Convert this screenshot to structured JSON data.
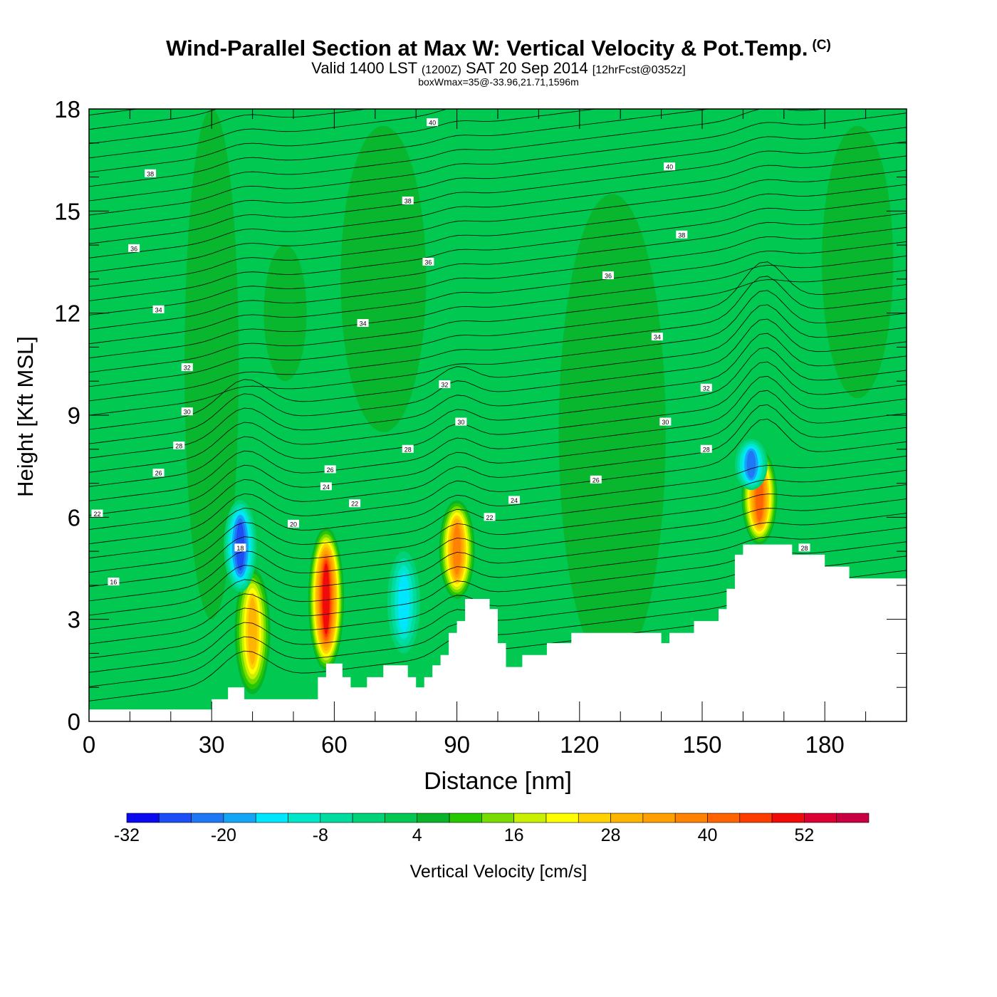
{
  "title": {
    "main": "Wind-Parallel Section at Max W: Vertical Velocity & Pot.Temp.",
    "copyright": "(C)",
    "valid_prefix": "Valid 1400 LST",
    "valid_utc": "(1200Z)",
    "valid_date": "SAT 20 Sep 2014",
    "forecast": "[12hrFcst@0352z]",
    "boxwmax": "boxWmax=35@-33.96,21.71,1596m"
  },
  "chart_data": {
    "type": "heatmap",
    "xlabel": "Distance [nm]",
    "ylabel": "Height [Kft MSL]",
    "xlim": [
      0,
      200
    ],
    "ylim": [
      0,
      18
    ],
    "x_ticks": [
      0,
      30,
      60,
      90,
      120,
      150,
      180
    ],
    "y_ticks": [
      0,
      3,
      6,
      9,
      12,
      15,
      18
    ],
    "field": "Vertical Velocity [cm/s]",
    "background_value_range": [
      -2,
      4
    ],
    "colorbar": {
      "label": "Vertical Velocity [cm/s]",
      "tick_labels": [
        "-32",
        "-20",
        "-8",
        "4",
        "16",
        "28",
        "40",
        "52"
      ],
      "levels": [
        -32,
        -28,
        -24,
        -20,
        -16,
        -12,
        -8,
        -4,
        0,
        4,
        8,
        12,
        16,
        20,
        24,
        28,
        32,
        36,
        40,
        44,
        48,
        52,
        56
      ],
      "colors": [
        "#0a0af0",
        "#1d4df5",
        "#1e78f5",
        "#14a5f5",
        "#00e6ff",
        "#00e6c8",
        "#00dca0",
        "#00d278",
        "#00c850",
        "#0ab428",
        "#28c800",
        "#78dc00",
        "#c8f000",
        "#ffff00",
        "#ffd200",
        "#ffb400",
        "#ffa000",
        "#ff8200",
        "#ff6400",
        "#ff3c00",
        "#f00a0a",
        "#dc0032",
        "#c80041"
      ]
    },
    "features": [
      {
        "type": "updraft",
        "x": 40,
        "y": [
          0.8,
          4.5
        ],
        "peak": 28
      },
      {
        "type": "updraft",
        "x": 58,
        "y": [
          1.5,
          5.7
        ],
        "peak": 48
      },
      {
        "type": "updraft",
        "x": 90,
        "y": [
          3.6,
          6.5
        ],
        "peak": 36
      },
      {
        "type": "updraft",
        "x": 164,
        "y": [
          5.2,
          8.0
        ],
        "peak": 40
      },
      {
        "type": "downdraft",
        "x": 37,
        "y": [
          3.8,
          6.5
        ],
        "peak": -28
      },
      {
        "type": "downdraft",
        "x": 77,
        "y": [
          2.0,
          5.0
        ],
        "peak": -16
      },
      {
        "type": "downdraft",
        "x": 162,
        "y": [
          6.8,
          8.3
        ],
        "peak": -24
      }
    ],
    "isentropes": [
      {
        "label": "40",
        "x": 84,
        "y": 17.6
      },
      {
        "label": "40",
        "x": 142,
        "y": 16.3
      },
      {
        "label": "38",
        "x": 15,
        "y": 16.1
      },
      {
        "label": "38",
        "x": 78,
        "y": 15.3
      },
      {
        "label": "38",
        "x": 145,
        "y": 14.3
      },
      {
        "label": "36",
        "x": 11,
        "y": 13.9
      },
      {
        "label": "36",
        "x": 83,
        "y": 13.5
      },
      {
        "label": "36",
        "x": 127,
        "y": 13.1
      },
      {
        "label": "34",
        "x": 17,
        "y": 12.1
      },
      {
        "label": "34",
        "x": 67,
        "y": 11.7
      },
      {
        "label": "34",
        "x": 139,
        "y": 11.3
      },
      {
        "label": "32",
        "x": 24,
        "y": 10.4
      },
      {
        "label": "32",
        "x": 87,
        "y": 9.9
      },
      {
        "label": "32",
        "x": 151,
        "y": 9.8
      },
      {
        "label": "30",
        "x": 24,
        "y": 9.1
      },
      {
        "label": "30",
        "x": 91,
        "y": 8.8
      },
      {
        "label": "30",
        "x": 141,
        "y": 8.8
      },
      {
        "label": "28",
        "x": 22,
        "y": 8.1
      },
      {
        "label": "28",
        "x": 78,
        "y": 8.0
      },
      {
        "label": "28",
        "x": 151,
        "y": 8.0
      },
      {
        "label": "26",
        "x": 17,
        "y": 7.3
      },
      {
        "label": "26",
        "x": 59,
        "y": 7.4
      },
      {
        "label": "26",
        "x": 124,
        "y": 7.1
      },
      {
        "label": "24",
        "x": 58,
        "y": 6.9
      },
      {
        "label": "24",
        "x": 104,
        "y": 6.5
      },
      {
        "label": "22",
        "x": 2,
        "y": 6.1
      },
      {
        "label": "22",
        "x": 65,
        "y": 6.4
      },
      {
        "label": "22",
        "x": 98,
        "y": 6.0
      },
      {
        "label": "20",
        "x": 50,
        "y": 5.8
      },
      {
        "label": "18",
        "x": 37,
        "y": 5.1
      },
      {
        "label": "16",
        "x": 6,
        "y": 4.1
      },
      {
        "label": "28",
        "x": 175,
        "y": 5.1
      }
    ],
    "terrain": [
      [
        0,
        0.35
      ],
      [
        30,
        0.35
      ],
      [
        30,
        0.65
      ],
      [
        34,
        0.65
      ],
      [
        34,
        1.0
      ],
      [
        38,
        1.0
      ],
      [
        38,
        0.65
      ],
      [
        56,
        0.65
      ],
      [
        56,
        1.3
      ],
      [
        58,
        1.3
      ],
      [
        58,
        1.7
      ],
      [
        62,
        1.7
      ],
      [
        62,
        1.3
      ],
      [
        64,
        1.3
      ],
      [
        64,
        1.0
      ],
      [
        68,
        1.0
      ],
      [
        68,
        1.3
      ],
      [
        72,
        1.3
      ],
      [
        72,
        1.65
      ],
      [
        78,
        1.65
      ],
      [
        78,
        1.3
      ],
      [
        80,
        1.3
      ],
      [
        80,
        1.0
      ],
      [
        82,
        1.0
      ],
      [
        82,
        1.3
      ],
      [
        84,
        1.3
      ],
      [
        84,
        1.65
      ],
      [
        86,
        1.65
      ],
      [
        86,
        1.95
      ],
      [
        88,
        1.95
      ],
      [
        88,
        2.6
      ],
      [
        90,
        2.6
      ],
      [
        90,
        2.95
      ],
      [
        92,
        2.95
      ],
      [
        92,
        3.6
      ],
      [
        98,
        3.6
      ],
      [
        98,
        3.3
      ],
      [
        100,
        3.3
      ],
      [
        100,
        2.3
      ],
      [
        102,
        2.3
      ],
      [
        102,
        1.6
      ],
      [
        106,
        1.6
      ],
      [
        106,
        1.95
      ],
      [
        112,
        1.95
      ],
      [
        112,
        2.3
      ],
      [
        118,
        2.3
      ],
      [
        118,
        2.6
      ],
      [
        140,
        2.6
      ],
      [
        140,
        2.3
      ],
      [
        142,
        2.3
      ],
      [
        142,
        2.6
      ],
      [
        148,
        2.6
      ],
      [
        148,
        2.95
      ],
      [
        154,
        2.95
      ],
      [
        154,
        3.3
      ],
      [
        156,
        3.3
      ],
      [
        156,
        3.9
      ],
      [
        158,
        3.9
      ],
      [
        158,
        4.9
      ],
      [
        160,
        4.9
      ],
      [
        160,
        5.2
      ],
      [
        168,
        5.2
      ],
      [
        168,
        5.2
      ],
      [
        172,
        5.2
      ],
      [
        172,
        4.9
      ],
      [
        180,
        4.9
      ],
      [
        180,
        4.55
      ],
      [
        186,
        4.55
      ],
      [
        186,
        4.2
      ],
      [
        200,
        4.2
      ]
    ]
  }
}
